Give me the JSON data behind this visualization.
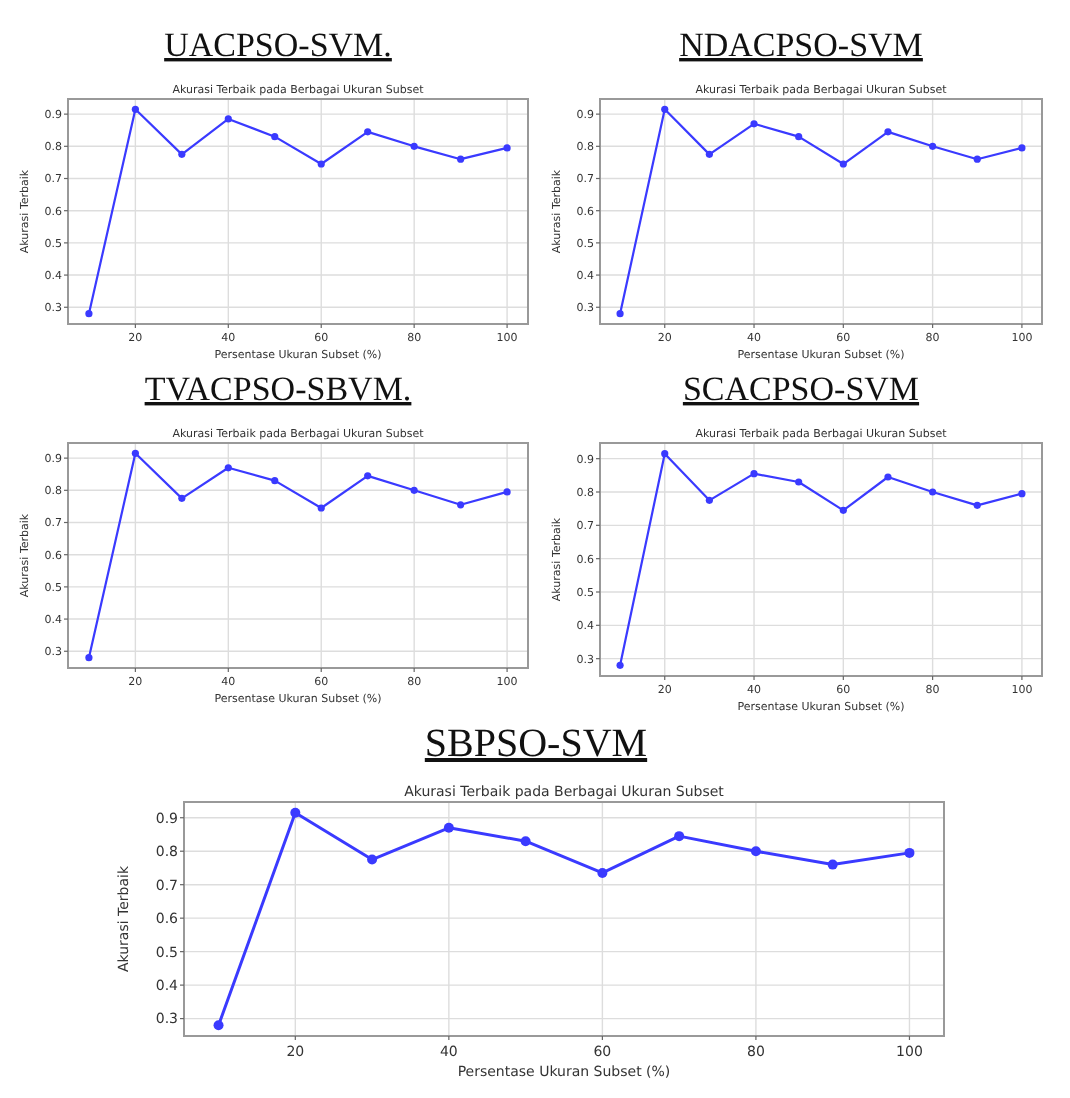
{
  "chart_data": [
    {
      "type": "line",
      "title": "UACPSO-SVM.",
      "subtitle": "Akurasi Terbaik pada Berbagai Ukuran Subset",
      "xlabel": "Persentase Ukuran Subset (%)",
      "ylabel": "Akurasi Terbaik",
      "x": [
        10,
        20,
        30,
        40,
        50,
        60,
        70,
        80,
        90,
        100
      ],
      "series": [
        {
          "color": "#3a3aff",
          "values": [
            0.28,
            0.915,
            0.775,
            0.885,
            0.83,
            0.745,
            0.845,
            0.8,
            0.76,
            0.795
          ]
        }
      ],
      "xlim": [
        5.5,
        104.5
      ],
      "ylim": [
        0.248,
        0.947
      ],
      "xticks": [
        20,
        40,
        60,
        80,
        100
      ],
      "yticks": [
        0.3,
        0.4,
        0.5,
        0.6,
        0.7,
        0.8,
        0.9
      ],
      "grid": true,
      "marker": "circle",
      "line_style": "solid"
    },
    {
      "type": "line",
      "title": "NDACPSO-SVM",
      "subtitle": "Akurasi Terbaik pada Berbagai Ukuran Subset",
      "xlabel": "Persentase Ukuran Subset (%)",
      "ylabel": "Akurasi Terbaik",
      "x": [
        10,
        20,
        30,
        40,
        50,
        60,
        70,
        80,
        90,
        100
      ],
      "series": [
        {
          "color": "#3a3aff",
          "values": [
            0.28,
            0.915,
            0.775,
            0.87,
            0.83,
            0.745,
            0.845,
            0.8,
            0.76,
            0.795
          ]
        }
      ],
      "xlim": [
        5.5,
        104.5
      ],
      "ylim": [
        0.248,
        0.947
      ],
      "xticks": [
        20,
        40,
        60,
        80,
        100
      ],
      "yticks": [
        0.3,
        0.4,
        0.5,
        0.6,
        0.7,
        0.8,
        0.9
      ],
      "grid": true,
      "marker": "circle",
      "line_style": "solid"
    },
    {
      "type": "line",
      "title": "TVACPSO-SBVM.",
      "subtitle": "Akurasi Terbaik pada Berbagai Ukuran Subset",
      "xlabel": "Persentase Ukuran Subset (%)",
      "ylabel": "Akurasi Terbaik",
      "x": [
        10,
        20,
        30,
        40,
        50,
        60,
        70,
        80,
        90,
        100
      ],
      "series": [
        {
          "color": "#3a3aff",
          "values": [
            0.28,
            0.915,
            0.775,
            0.87,
            0.83,
            0.745,
            0.845,
            0.8,
            0.755,
            0.795
          ]
        }
      ],
      "xlim": [
        5.5,
        104.5
      ],
      "ylim": [
        0.248,
        0.947
      ],
      "xticks": [
        20,
        40,
        60,
        80,
        100
      ],
      "yticks": [
        0.3,
        0.4,
        0.5,
        0.6,
        0.7,
        0.8,
        0.9
      ],
      "grid": true,
      "marker": "circle",
      "line_style": "solid"
    },
    {
      "type": "line",
      "title": "SCACPSO-SVM",
      "subtitle": "Akurasi Terbaik pada Berbagai Ukuran Subset",
      "xlabel": "Persentase Ukuran Subset (%)",
      "ylabel": "Akurasi Terbaik",
      "x": [
        10,
        20,
        30,
        40,
        50,
        60,
        70,
        80,
        90,
        100
      ],
      "series": [
        {
          "color": "#3a3aff",
          "values": [
            0.28,
            0.915,
            0.775,
            0.855,
            0.83,
            0.745,
            0.845,
            0.8,
            0.76,
            0.795
          ]
        }
      ],
      "xlim": [
        5.5,
        104.5
      ],
      "ylim": [
        0.248,
        0.947
      ],
      "xticks": [
        20,
        40,
        60,
        80,
        100
      ],
      "yticks": [
        0.3,
        0.4,
        0.5,
        0.6,
        0.7,
        0.8,
        0.9
      ],
      "grid": true,
      "marker": "circle",
      "line_style": "solid"
    },
    {
      "type": "line",
      "title": "SBPSO-SVM",
      "subtitle": "Akurasi Terbaik pada Berbagai Ukuran Subset",
      "xlabel": "Persentase Ukuran Subset (%)",
      "ylabel": "Akurasi Terbaik",
      "x": [
        10,
        20,
        30,
        40,
        50,
        60,
        70,
        80,
        90,
        100
      ],
      "series": [
        {
          "color": "#3a3aff",
          "values": [
            0.28,
            0.915,
            0.775,
            0.87,
            0.83,
            0.735,
            0.845,
            0.8,
            0.76,
            0.795
          ]
        }
      ],
      "xlim": [
        5.5,
        104.5
      ],
      "ylim": [
        0.248,
        0.947
      ],
      "xticks": [
        20,
        40,
        60,
        80,
        100
      ],
      "yticks": [
        0.3,
        0.4,
        0.5,
        0.6,
        0.7,
        0.8,
        0.9
      ],
      "grid": true,
      "marker": "circle",
      "line_style": "solid"
    }
  ]
}
